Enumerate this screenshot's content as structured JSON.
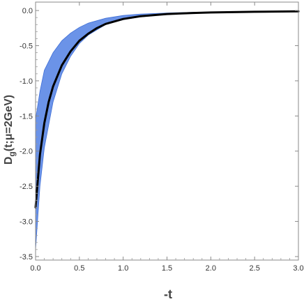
{
  "chart_data": {
    "type": "line",
    "xlabel": "-t",
    "ylabel": "D_g(t;μ=2GeV)",
    "ylabel_parts": {
      "main": "D",
      "sub": "g",
      "rest": "(t;μ=2GeV)"
    },
    "xlim": [
      0,
      3.0
    ],
    "ylim": [
      -3.55,
      0.12
    ],
    "xticks": [
      0.0,
      0.5,
      1.0,
      1.5,
      2.0,
      2.5,
      3.0
    ],
    "xtick_labels": [
      "0.0",
      "0.5",
      "1.0",
      "1.5",
      "2.0",
      "2.5",
      "3.0"
    ],
    "yticks": [
      0.0,
      -0.5,
      -1.0,
      -1.5,
      -2.0,
      -2.5,
      -3.0,
      -3.5
    ],
    "ytick_labels": [
      "0.0",
      "-0.5",
      "-1.0",
      "-1.5",
      "-2.0",
      "-2.5",
      "-3.0",
      "-3.5"
    ],
    "grid": false,
    "series": [
      {
        "kind": "band",
        "color": "#5b87e6",
        "x": [
          0.0,
          0.05,
          0.1,
          0.2,
          0.3,
          0.4,
          0.5,
          0.6,
          0.8,
          1.0,
          1.2,
          1.5,
          1.8,
          2.0
        ],
        "upper": [
          -1.55,
          -1.15,
          -0.85,
          -0.6,
          -0.43,
          -0.32,
          -0.24,
          -0.18,
          -0.11,
          -0.07,
          -0.05,
          -0.035,
          -0.025,
          -0.02
        ],
        "lower": [
          -3.4,
          -2.5,
          -1.95,
          -1.3,
          -0.9,
          -0.65,
          -0.47,
          -0.35,
          -0.2,
          -0.13,
          -0.09,
          -0.055,
          -0.04,
          -0.035
        ]
      },
      {
        "kind": "line",
        "color": "#000000",
        "x": [
          0.0,
          0.05,
          0.1,
          0.15,
          0.2,
          0.3,
          0.4,
          0.5,
          0.6,
          0.7,
          0.8,
          1.0,
          1.2,
          1.5,
          1.8,
          2.0,
          2.5,
          3.0
        ],
        "y": [
          -2.8,
          -2.05,
          -1.6,
          -1.3,
          -1.08,
          -0.78,
          -0.58,
          -0.43,
          -0.33,
          -0.25,
          -0.19,
          -0.12,
          -0.08,
          -0.05,
          -0.035,
          -0.028,
          -0.018,
          -0.012
        ]
      }
    ]
  }
}
